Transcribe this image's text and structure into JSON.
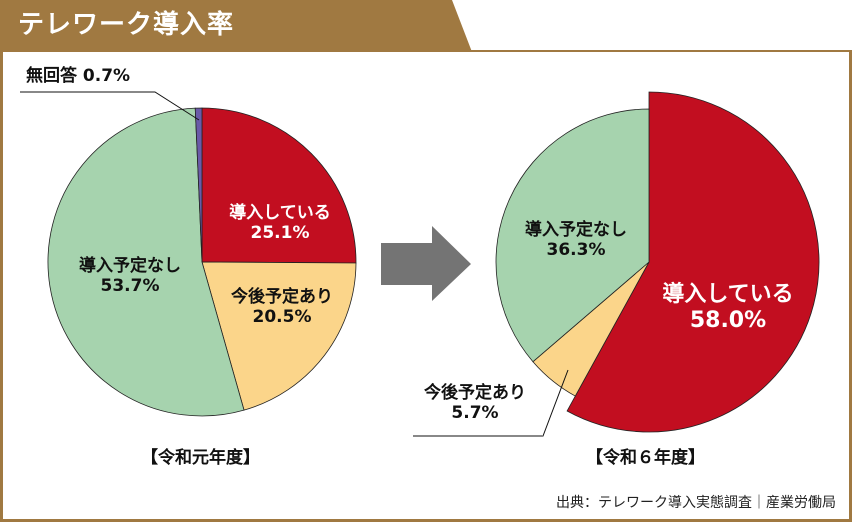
{
  "title": "テレワーク導入率",
  "source": "出典：テレワーク導入実態調査｜産業労働局",
  "colors": {
    "brand_brown": "#A07941",
    "adopted": "#C20E20",
    "planned": "#FBD58A",
    "not_planned": "#A6D3AE",
    "no_answer": "#6A5AA8",
    "arrow": "#747474"
  },
  "left_chart": {
    "caption": "【令和元年度】",
    "slices": {
      "adopted": {
        "name": "導入している",
        "value": "25.1%"
      },
      "planned": {
        "name": "今後予定あり",
        "value": "20.5%"
      },
      "not_planned": {
        "name": "導入予定なし",
        "value": "53.7%"
      },
      "no_answer": {
        "name": "無回答",
        "value": "0.7%",
        "label": "無回答 0.7%"
      }
    }
  },
  "right_chart": {
    "caption": "【令和６年度】",
    "slices": {
      "adopted": {
        "name": "導入している",
        "value": "58.0%"
      },
      "planned": {
        "name": "今後予定あり",
        "value": "5.7%"
      },
      "not_planned": {
        "name": "導入予定なし",
        "value": "36.3%"
      }
    }
  },
  "chart_data": [
    {
      "type": "pie",
      "title": "テレワーク導入率 【令和元年度】",
      "categories": [
        "導入している",
        "今後予定あり",
        "導入予定なし",
        "無回答"
      ],
      "values": [
        25.1,
        20.5,
        53.7,
        0.7
      ],
      "colors": [
        "#C20E20",
        "#FBD58A",
        "#A6D3AE",
        "#6A5AA8"
      ],
      "start_angle_deg": 0,
      "direction": "clockwise"
    },
    {
      "type": "pie",
      "title": "テレワーク導入率 【令和６年度】",
      "categories": [
        "導入している",
        "今後予定あり",
        "導入予定なし"
      ],
      "values": [
        58.0,
        5.7,
        36.3
      ],
      "colors": [
        "#C20E20",
        "#FBD58A",
        "#A6D3AE"
      ],
      "start_angle_deg": 0,
      "direction": "clockwise",
      "highlighted": "導入している"
    }
  ]
}
